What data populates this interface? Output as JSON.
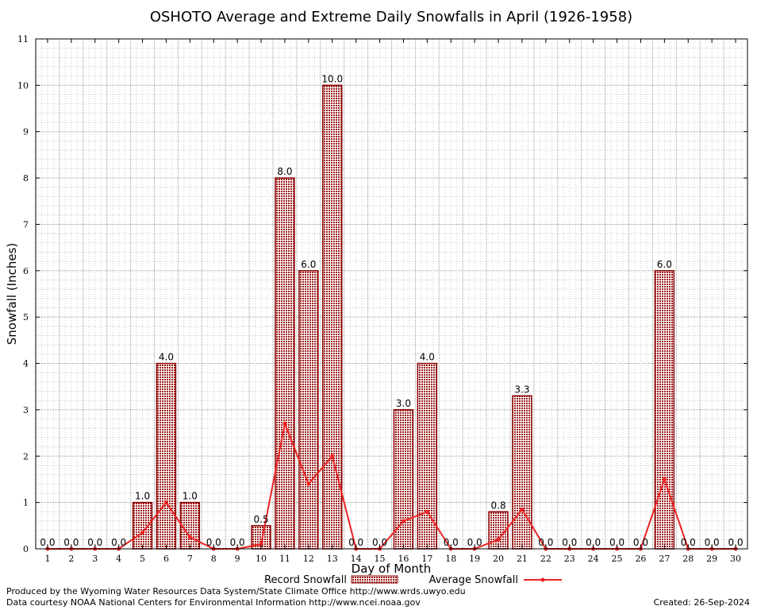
{
  "chart_data": {
    "type": "bar",
    "title": "OSHOTO Average and Extreme Daily Snowfalls in April (1926-1958)",
    "xlabel": "Day of Month",
    "ylabel": "Snowfall (Inches)",
    "ylim": [
      0,
      11
    ],
    "yticks": [
      "0",
      "1",
      "2",
      "3",
      "4",
      "5",
      "6",
      "7",
      "8",
      "9",
      "10",
      "11"
    ],
    "categories": [
      "1",
      "2",
      "3",
      "4",
      "5",
      "6",
      "7",
      "8",
      "9",
      "10",
      "11",
      "12",
      "13",
      "14",
      "15",
      "16",
      "17",
      "18",
      "19",
      "20",
      "21",
      "22",
      "23",
      "24",
      "25",
      "26",
      "27",
      "28",
      "29",
      "30"
    ],
    "series": [
      {
        "name": "Record Snowfall",
        "kind": "bar",
        "values": [
          0,
          0,
          0,
          0,
          1.0,
          4.0,
          1.0,
          0,
          0,
          0.5,
          8.0,
          6.0,
          10.0,
          0,
          0,
          3.0,
          4.0,
          0,
          0,
          0.8,
          3.3,
          0,
          0,
          0,
          0,
          0,
          6.0,
          0,
          0,
          0
        ],
        "labels": [
          "0.0",
          "0.0",
          "0.0",
          "0.0",
          "1.0",
          "4.0",
          "1.0",
          "0.0",
          "0.0",
          "0.5",
          "8.0",
          "6.0",
          "10.0",
          "0.0",
          "0.0",
          "3.0",
          "4.0",
          "0.0",
          "0.0",
          "0.8",
          "3.3",
          "0.0",
          "0.0",
          "0.0",
          "0.0",
          "0.0",
          "6.0",
          "0.0",
          "0.0",
          "0.0"
        ]
      },
      {
        "name": "Average Snowfall",
        "kind": "line",
        "values": [
          0,
          0,
          0,
          0,
          0.35,
          1.0,
          0.25,
          0,
          0,
          0.1,
          2.7,
          1.4,
          2.0,
          0,
          0,
          0.6,
          0.8,
          0,
          0,
          0.2,
          0.85,
          0,
          0,
          0,
          0,
          0,
          1.5,
          0,
          0,
          0
        ]
      }
    ],
    "grid": true,
    "legend_position": "bottom-center",
    "colors": {
      "bar_fill": "#c09090",
      "bar_stroke": "#8b0000",
      "line": "#ee2222",
      "grid": "#a0a0a0"
    }
  },
  "footer": {
    "produced_by": "Produced by the Wyoming Water Resources Data System/State Climate Office http://www.wrds.uwyo.edu",
    "courtesy": "Data courtesy NOAA National Centers for Environmental Information http://www.ncei.noaa.gov",
    "created": "Created: 26-Sep-2024"
  }
}
